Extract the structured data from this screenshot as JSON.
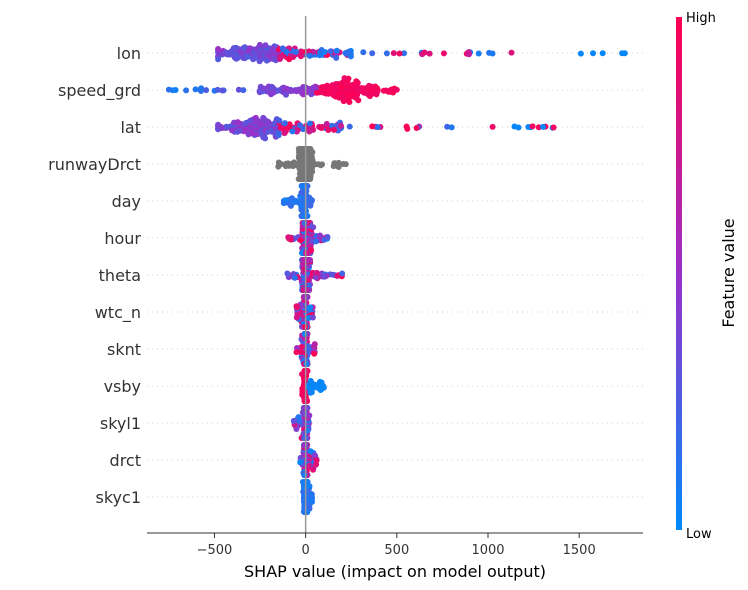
{
  "chart_data": {
    "type": "beeswarm",
    "title": "",
    "xlabel": "SHAP value (impact on model output)",
    "xlim": [
      -870,
      1850
    ],
    "xticks": [
      -500,
      0,
      500,
      1000,
      1500
    ],
    "xtick_labels": [
      "−500",
      "0",
      "500",
      "1000",
      "1500"
    ],
    "colorbar": {
      "label": "Feature value",
      "high_label": "High",
      "low_label": "Low",
      "low_color": "#008afb",
      "mid_color": "#9b30c8",
      "high_color": "#ff0052"
    },
    "missing_value_color": "#777777",
    "features": [
      {
        "name": "lon",
        "min": -480,
        "max": 1750,
        "q1": -250,
        "median": -120,
        "q3": 250,
        "peak": -280,
        "color_trend": "low_right"
      },
      {
        "name": "speed_grd",
        "min": -750,
        "max": 500,
        "q1": -250,
        "median": 150,
        "q3": 280,
        "peak": 230,
        "color_trend": "high_right"
      },
      {
        "name": "lat",
        "min": -480,
        "max": 1360,
        "q1": -260,
        "median": -150,
        "q3": 200,
        "peak": -280,
        "color_trend": "high_right_blue_tail"
      },
      {
        "name": "runwayDrct",
        "min": -150,
        "max": 220,
        "q1": -40,
        "median": 0,
        "q3": 40,
        "peak": 0,
        "color_trend": "missing"
      },
      {
        "name": "day",
        "min": -120,
        "max": 35,
        "q1": -25,
        "median": -5,
        "q3": 10,
        "peak": -5,
        "color_trend": "low"
      },
      {
        "name": "hour",
        "min": -95,
        "max": 120,
        "q1": -20,
        "median": 0,
        "q3": 30,
        "peak": 10,
        "color_trend": "mixed"
      },
      {
        "name": "theta",
        "min": -100,
        "max": 200,
        "q1": -20,
        "median": 0,
        "q3": 25,
        "peak": 0,
        "color_trend": "mixed"
      },
      {
        "name": "wtc_n",
        "min": -50,
        "max": 40,
        "q1": -10,
        "median": 0,
        "q3": 10,
        "peak": 0,
        "color_trend": "mixed"
      },
      {
        "name": "sknt",
        "min": -50,
        "max": 50,
        "q1": -10,
        "median": 0,
        "q3": 10,
        "peak": 0,
        "color_trend": "mixed"
      },
      {
        "name": "vsby",
        "min": -20,
        "max": 100,
        "q1": -5,
        "median": 0,
        "q3": 5,
        "peak": 0,
        "color_trend": "high_left_low_right"
      },
      {
        "name": "skyl1",
        "min": -65,
        "max": 20,
        "q1": -8,
        "median": 0,
        "q3": 8,
        "peak": 0,
        "color_trend": "mixed"
      },
      {
        "name": "drct",
        "min": -30,
        "max": 60,
        "q1": -8,
        "median": 0,
        "q3": 8,
        "peak": 0,
        "color_trend": "mixed"
      },
      {
        "name": "skyc1",
        "min": -15,
        "max": 35,
        "q1": -5,
        "median": 0,
        "q3": 5,
        "peak": 0,
        "color_trend": "low"
      }
    ]
  }
}
